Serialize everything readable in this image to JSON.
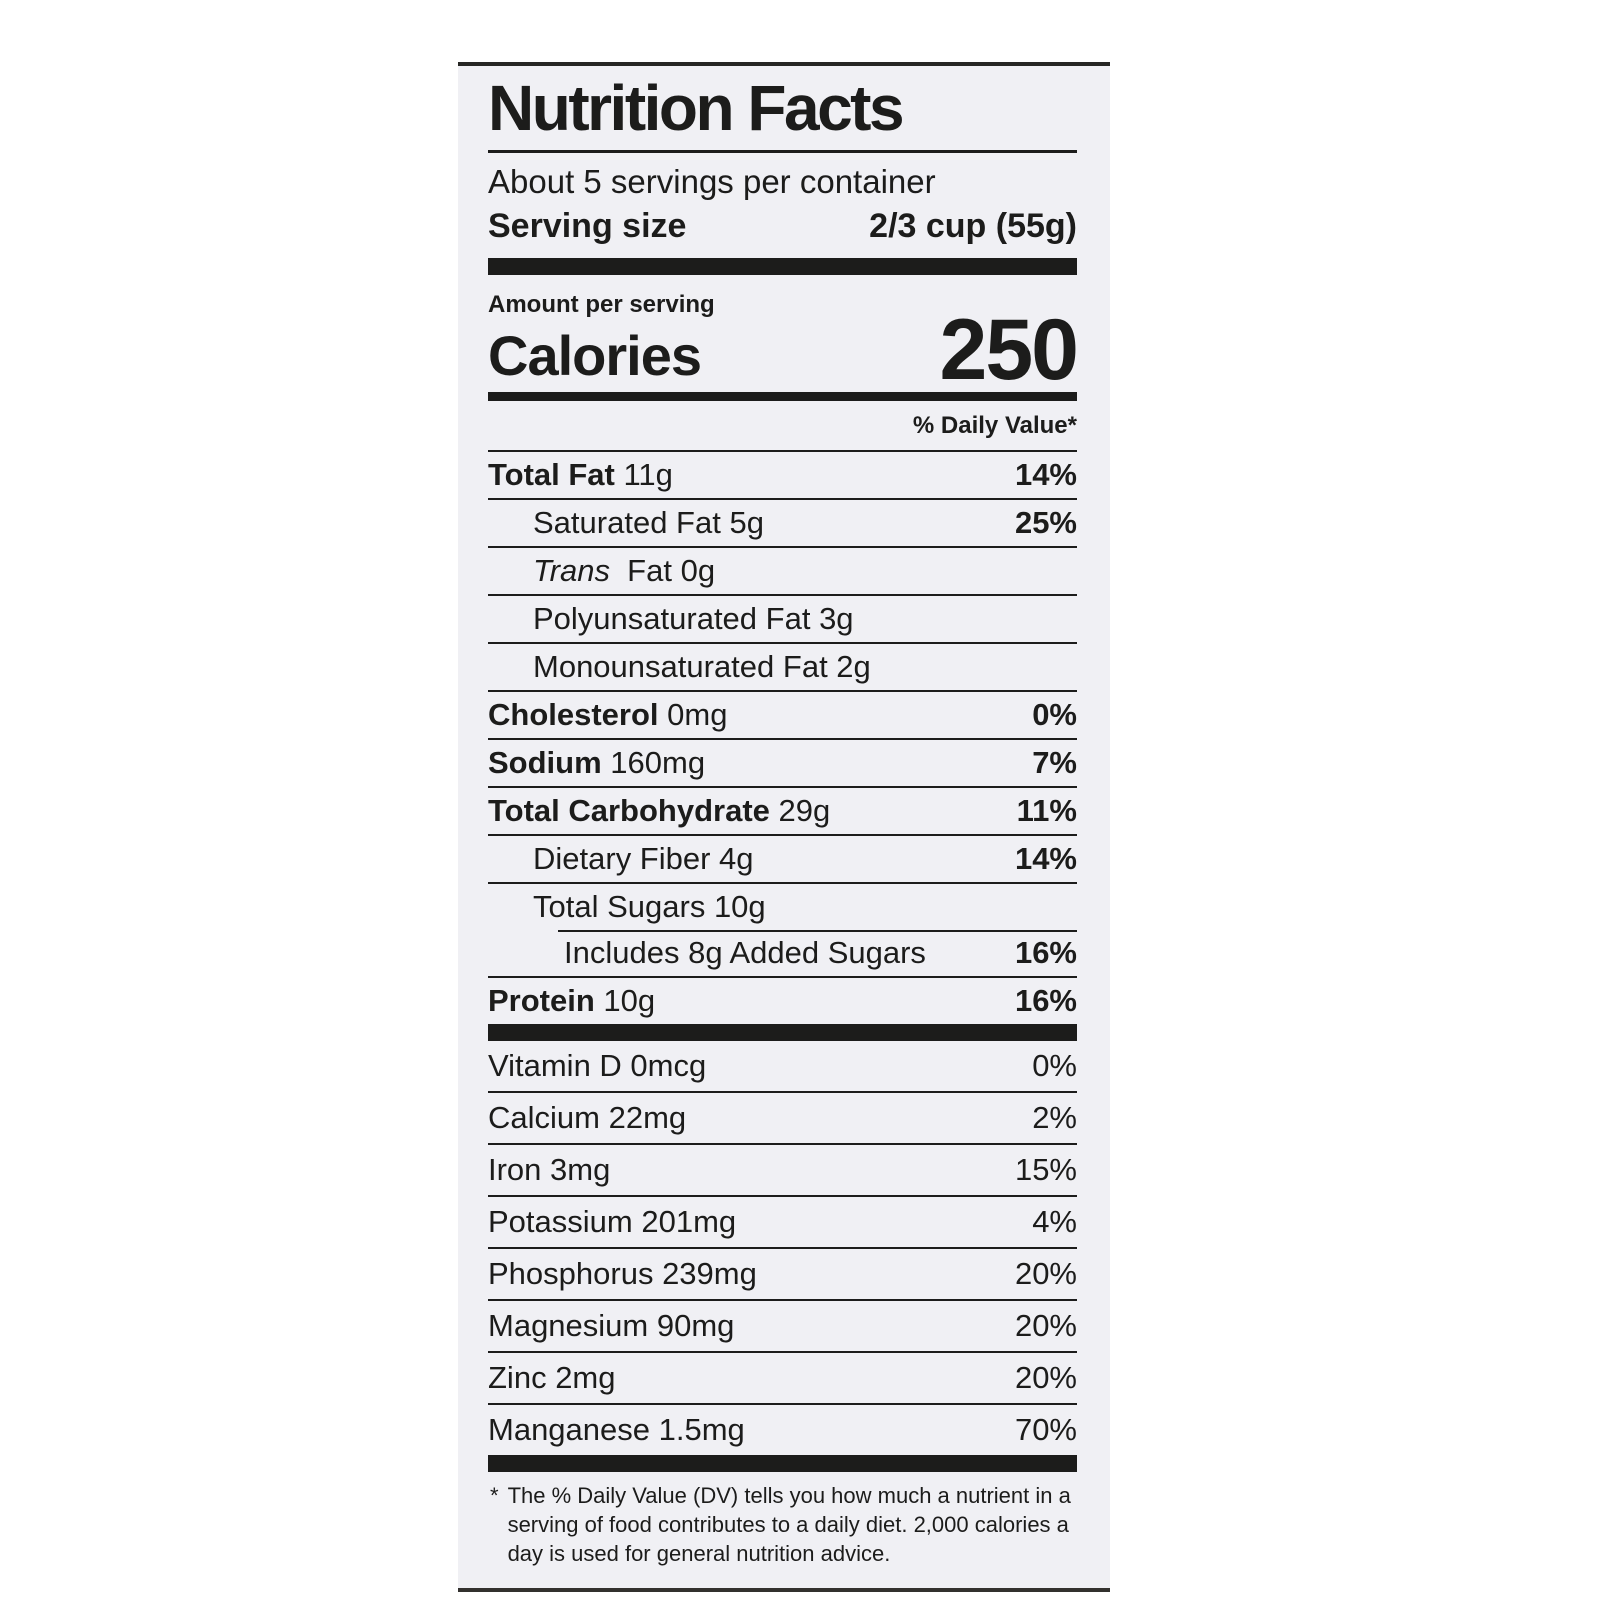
{
  "label": {
    "background_color": "#f0f0f4",
    "text_color": "#1c1c1b",
    "title": "Nutrition Facts",
    "servings_per_container": "About 5 servings per container",
    "serving_size": {
      "label": "Serving size",
      "value": "2/3 cup (55g)"
    },
    "amount_per_serving": "Amount per serving",
    "calories": {
      "label": "Calories",
      "value": "250"
    },
    "daily_value_header": "% Daily Value*",
    "nutrients": [
      {
        "name": "Total Fat",
        "amount": "11g",
        "dv": "14%",
        "name_bold": true,
        "dv_bold": true,
        "indent": 0
      },
      {
        "name": "Saturated Fat",
        "amount": "5g",
        "dv": "25%",
        "name_bold": false,
        "dv_bold": true,
        "indent": 1
      },
      {
        "name": "Trans",
        "name_italic": true,
        "name_suffix": "Fat",
        "amount": "0g",
        "dv": "",
        "name_bold": false,
        "dv_bold": false,
        "indent": 1
      },
      {
        "name": "Polyunsaturated Fat",
        "amount": "3g",
        "dv": "",
        "name_bold": false,
        "dv_bold": false,
        "indent": 1
      },
      {
        "name": "Monounsaturated Fat",
        "amount": "2g",
        "dv": "",
        "name_bold": false,
        "dv_bold": false,
        "indent": 1
      },
      {
        "name": "Cholesterol",
        "amount": "0mg",
        "dv": "0%",
        "name_bold": true,
        "dv_bold": true,
        "indent": 0
      },
      {
        "name": "Sodium",
        "amount": "160mg",
        "dv": "7%",
        "name_bold": true,
        "dv_bold": true,
        "indent": 0
      },
      {
        "name": "Total Carbohydrate",
        "amount": "29g",
        "dv": "11%",
        "name_bold": true,
        "dv_bold": true,
        "indent": 0
      },
      {
        "name": "Dietary Fiber",
        "amount": "4g",
        "dv": "14%",
        "name_bold": false,
        "dv_bold": true,
        "indent": 1
      },
      {
        "name": "Total Sugars",
        "amount": "10g",
        "dv": "",
        "name_bold": false,
        "dv_bold": false,
        "indent": 1
      },
      {
        "name": "Includes 8g Added Sugars",
        "amount": "",
        "dv": "16%",
        "name_bold": false,
        "dv_bold": true,
        "indent": 2,
        "separator_indented": true
      },
      {
        "name": "Protein",
        "amount": "10g",
        "dv": "16%",
        "name_bold": true,
        "dv_bold": true,
        "indent": 0
      }
    ],
    "micronutrients": [
      {
        "name": "Vitamin D",
        "amount": "0mcg",
        "dv": "0%"
      },
      {
        "name": "Calcium",
        "amount": "22mg",
        "dv": "2%"
      },
      {
        "name": "Iron",
        "amount": "3mg",
        "dv": "15%"
      },
      {
        "name": "Potassium",
        "amount": "201mg",
        "dv": "4%"
      },
      {
        "name": "Phosphorus",
        "amount": "239mg",
        "dv": "20%"
      },
      {
        "name": "Magnesium",
        "amount": "90mg",
        "dv": "20%"
      },
      {
        "name": "Zinc",
        "amount": "2mg",
        "dv": "20%"
      },
      {
        "name": "Manganese",
        "amount": "1.5mg",
        "dv": "70%"
      }
    ],
    "footnote": {
      "marker": "*",
      "text": "The % Daily Value (DV) tells you how much a nutrient in a serving of food contributes to a daily diet. 2,000 calories a day is used for general nutrition advice."
    }
  }
}
